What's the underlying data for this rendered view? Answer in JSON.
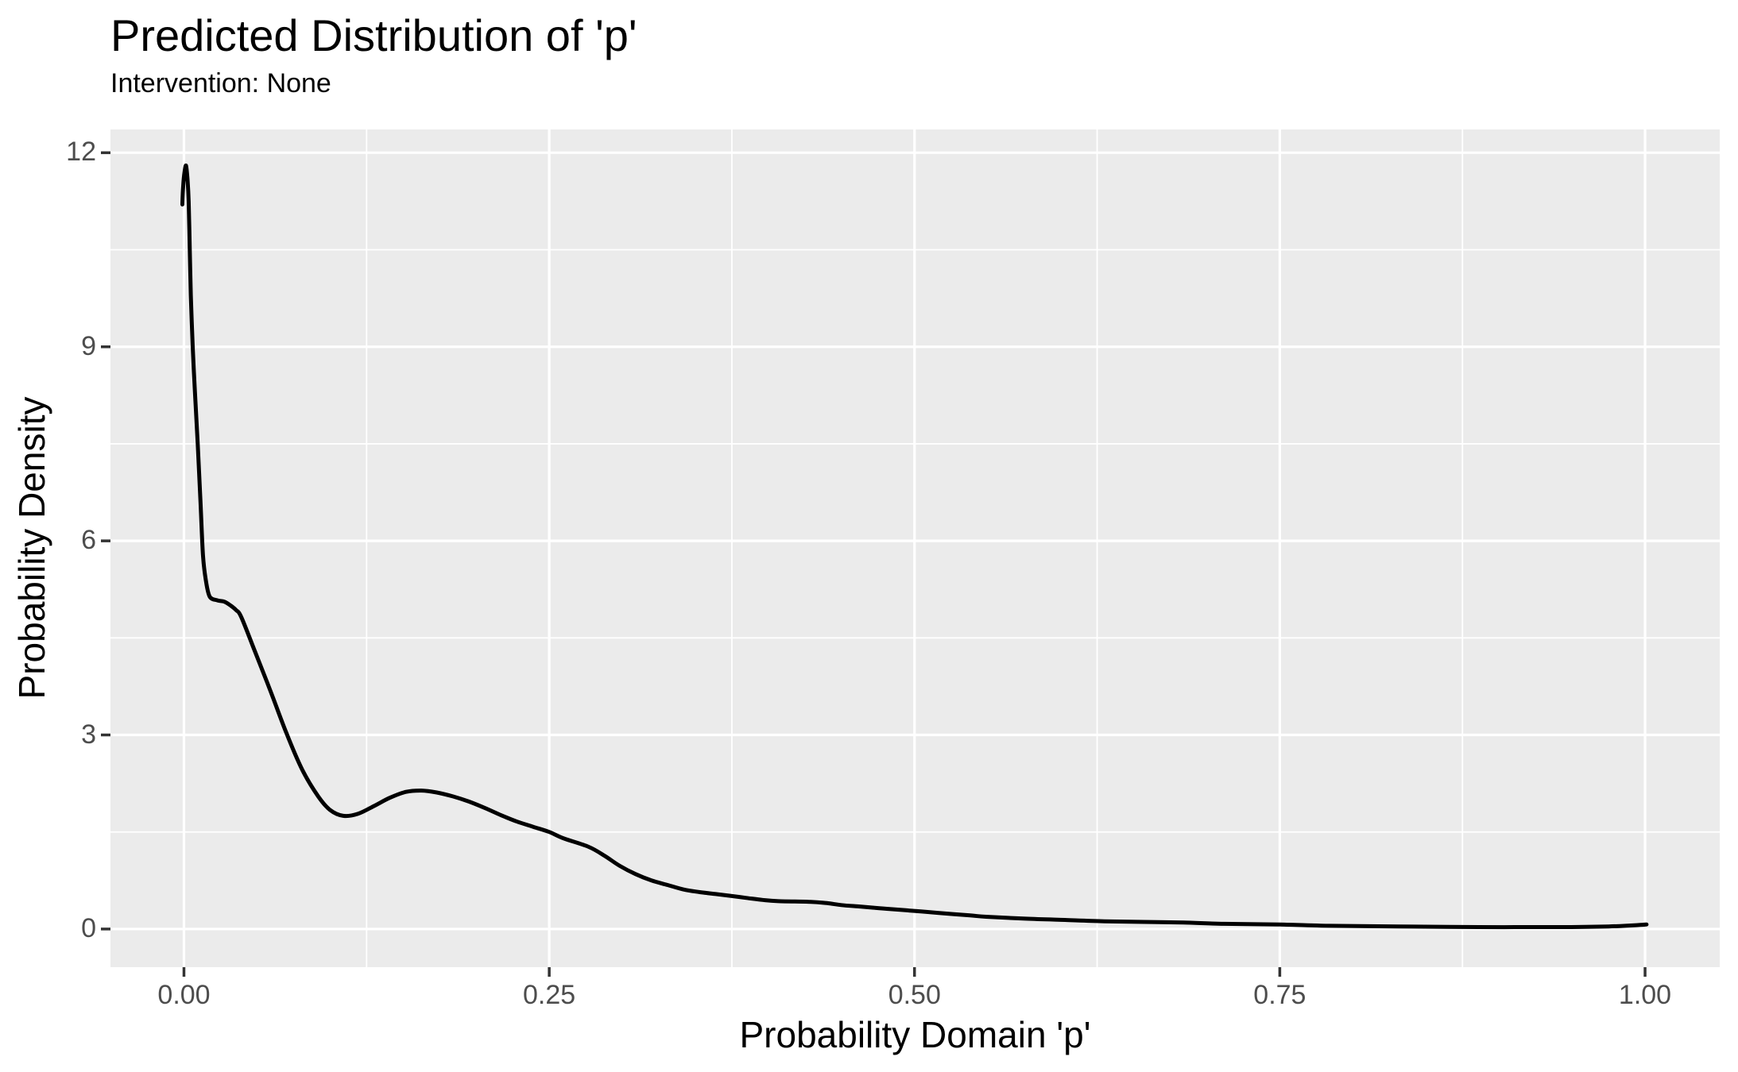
{
  "chart_data": {
    "type": "line",
    "title": "Predicted Distribution of 'p'",
    "subtitle": "Intervention: None",
    "xlabel": "Probability Domain 'p'",
    "ylabel": "Probability Density",
    "x_ticks": {
      "values": [
        0,
        0.25,
        0.5,
        0.75,
        1
      ],
      "labels": [
        "0.00",
        "0.25",
        "0.50",
        "0.75",
        "1.00"
      ]
    },
    "y_ticks": {
      "values": [
        0,
        3,
        6,
        9,
        12
      ],
      "labels": [
        "0",
        "3",
        "6",
        "9",
        "12"
      ]
    },
    "x_minor_gridlines": [
      0.125,
      0.375,
      0.625,
      0.875
    ],
    "y_minor_gridlines": [
      1.5,
      4.5,
      7.5,
      10.5
    ],
    "xlim": [
      -0.0503,
      1.0511
    ],
    "ylim": [
      -0.59,
      12.36
    ],
    "grid": true,
    "legend": "none",
    "theme": {
      "panel_bg": "#EBEBEB",
      "grid_color": "#FFFFFF",
      "curve_color": "#000000",
      "tick_label_color": "#4D4D4D",
      "tick_mark_color": "#333333",
      "text_color": "#000000",
      "page_bg": "#FFFFFF"
    },
    "series": [
      {
        "name": "density of p",
        "points": [
          [
            -0.0011,
            11.2
          ],
          [
            -0.0005,
            11.5
          ],
          [
            0.0004,
            11.7
          ],
          [
            0.0014,
            11.8
          ],
          [
            0.0024,
            11.6
          ],
          [
            0.0032,
            11.25
          ],
          [
            0.004,
            10.5
          ],
          [
            0.0047,
            9.8
          ],
          [
            0.006,
            9.0
          ],
          [
            0.0075,
            8.3
          ],
          [
            0.0094,
            7.5
          ],
          [
            0.0113,
            6.6
          ],
          [
            0.013,
            5.78
          ],
          [
            0.0149,
            5.4
          ],
          [
            0.0176,
            5.14
          ],
          [
            0.023,
            5.08
          ],
          [
            0.0276,
            5.06
          ],
          [
            0.032,
            5.0
          ],
          [
            0.0357,
            4.93
          ],
          [
            0.0393,
            4.82
          ],
          [
            0.0484,
            4.3
          ],
          [
            0.0592,
            3.68
          ],
          [
            0.0701,
            3.03
          ],
          [
            0.081,
            2.46
          ],
          [
            0.0919,
            2.05
          ],
          [
            0.1,
            1.84
          ],
          [
            0.109,
            1.75
          ],
          [
            0.119,
            1.78
          ],
          [
            0.13,
            1.9
          ],
          [
            0.141,
            2.03
          ],
          [
            0.152,
            2.12
          ],
          [
            0.1626,
            2.14
          ],
          [
            0.173,
            2.11
          ],
          [
            0.184,
            2.05
          ],
          [
            0.195,
            1.97
          ],
          [
            0.206,
            1.87
          ],
          [
            0.217,
            1.76
          ],
          [
            0.228,
            1.66
          ],
          [
            0.239,
            1.58
          ],
          [
            0.25,
            1.5
          ],
          [
            0.26,
            1.4
          ],
          [
            0.277,
            1.27
          ],
          [
            0.288,
            1.13
          ],
          [
            0.298,
            0.98
          ],
          [
            0.309,
            0.85
          ],
          [
            0.32,
            0.75
          ],
          [
            0.331,
            0.68
          ],
          [
            0.342,
            0.61
          ],
          [
            0.353,
            0.57
          ],
          [
            0.364,
            0.54
          ],
          [
            0.375,
            0.51
          ],
          [
            0.385,
            0.48
          ],
          [
            0.396,
            0.45
          ],
          [
            0.407,
            0.43
          ],
          [
            0.429,
            0.42
          ],
          [
            0.44,
            0.4
          ],
          [
            0.45,
            0.37
          ],
          [
            0.461,
            0.35
          ],
          [
            0.472,
            0.33
          ],
          [
            0.483,
            0.31
          ],
          [
            0.494,
            0.29
          ],
          [
            0.505,
            0.27
          ],
          [
            0.516,
            0.25
          ],
          [
            0.538,
            0.21
          ],
          [
            0.549,
            0.19
          ],
          [
            0.576,
            0.16
          ],
          [
            0.603,
            0.14
          ],
          [
            0.63,
            0.12
          ],
          [
            0.657,
            0.11
          ],
          [
            0.684,
            0.1
          ],
          [
            0.712,
            0.08
          ],
          [
            0.75,
            0.07
          ],
          [
            0.784,
            0.05
          ],
          [
            0.831,
            0.04
          ],
          [
            0.886,
            0.03
          ],
          [
            0.94,
            0.03
          ],
          [
            0.975,
            0.04
          ],
          [
            0.995,
            0.06
          ],
          [
            1.001,
            0.07
          ]
        ]
      }
    ],
    "panel_layout_note": ""
  }
}
